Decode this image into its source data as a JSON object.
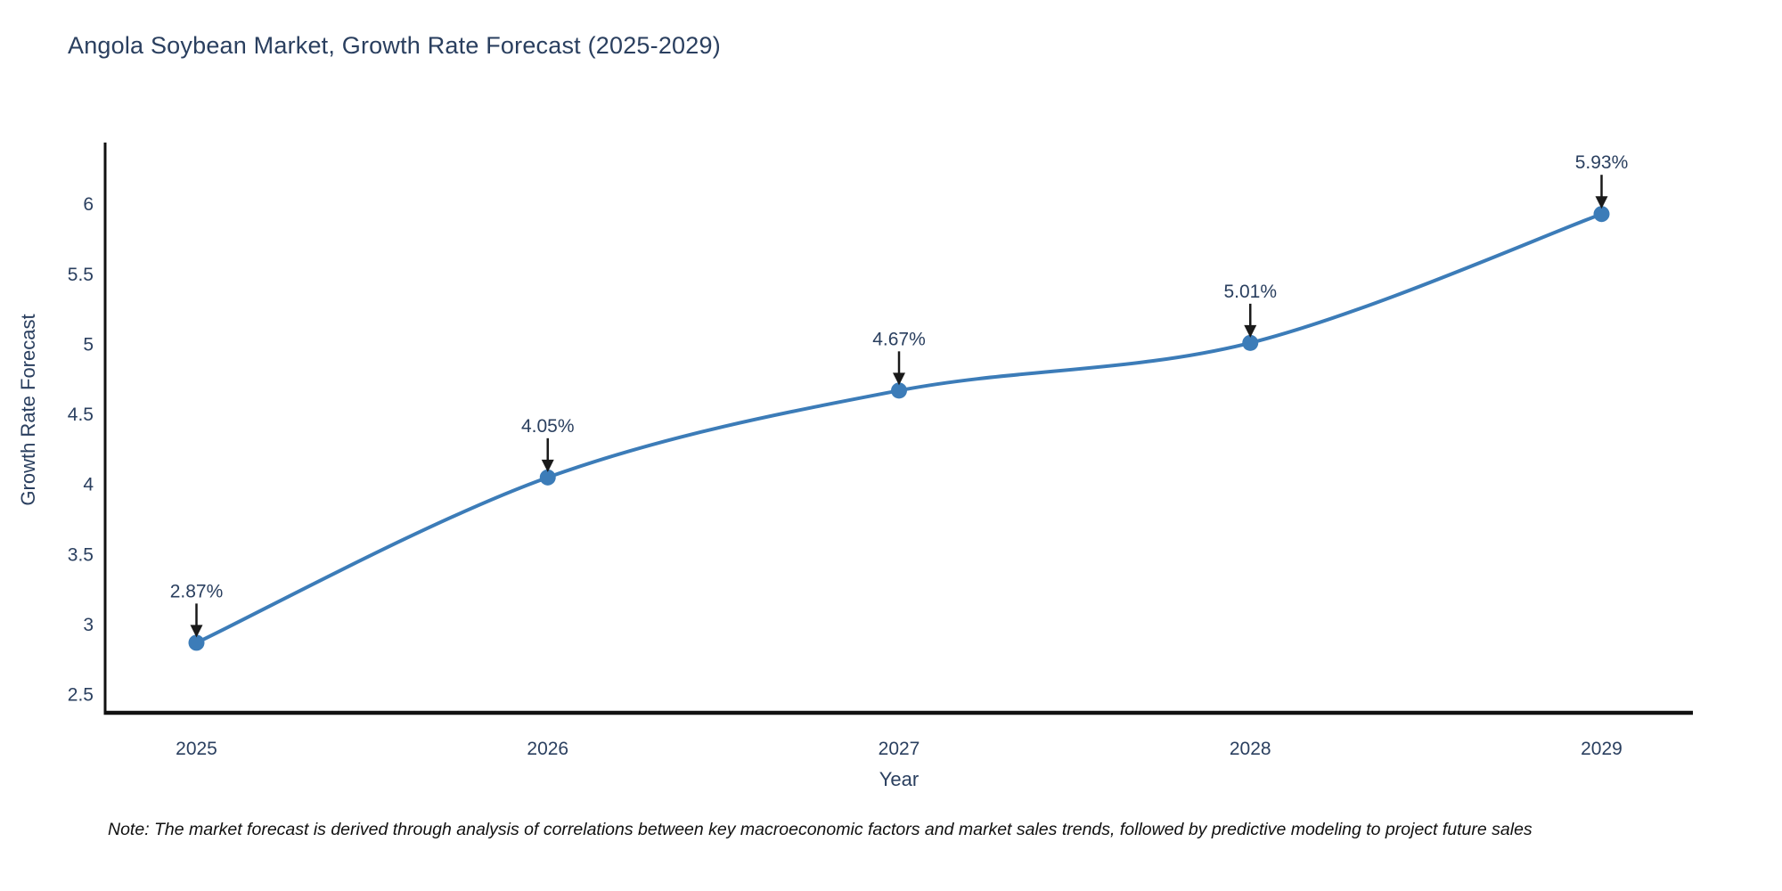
{
  "chart_data": {
    "type": "line",
    "title": "Angola Soybean Market, Growth Rate Forecast (2025-2029)",
    "xlabel": "Year",
    "ylabel": "Growth Rate Forecast",
    "line_shape": "spline",
    "grid": false,
    "legend": "none",
    "x": [
      2025,
      2026,
      2027,
      2028,
      2029
    ],
    "values": [
      2.87,
      4.05,
      4.67,
      5.01,
      5.93
    ],
    "point_labels": [
      "2.87%",
      "4.05%",
      "4.67%",
      "5.01%",
      "5.93%"
    ],
    "xticks": [
      "2025",
      "2026",
      "2027",
      "2028",
      "2029"
    ],
    "yticks": [
      2.5,
      3,
      3.5,
      4,
      4.5,
      5,
      5.5,
      6
    ],
    "xlim": [
      2024.74,
      2029.26
    ],
    "ylim": [
      2.37,
      6.44
    ],
    "colors": {
      "line": "#3c7cb8",
      "marker": "#3c7cb8",
      "axis": "#111111",
      "tick_text": "#2a3f5f",
      "annotation_text": "#2a3f5f",
      "arrow": "#1a1a1a"
    }
  },
  "note": {
    "text": "Note: The market forecast is derived through analysis of correlations between key macroeconomic factors and market sales trends, followed by predictive modeling to project future sales"
  }
}
